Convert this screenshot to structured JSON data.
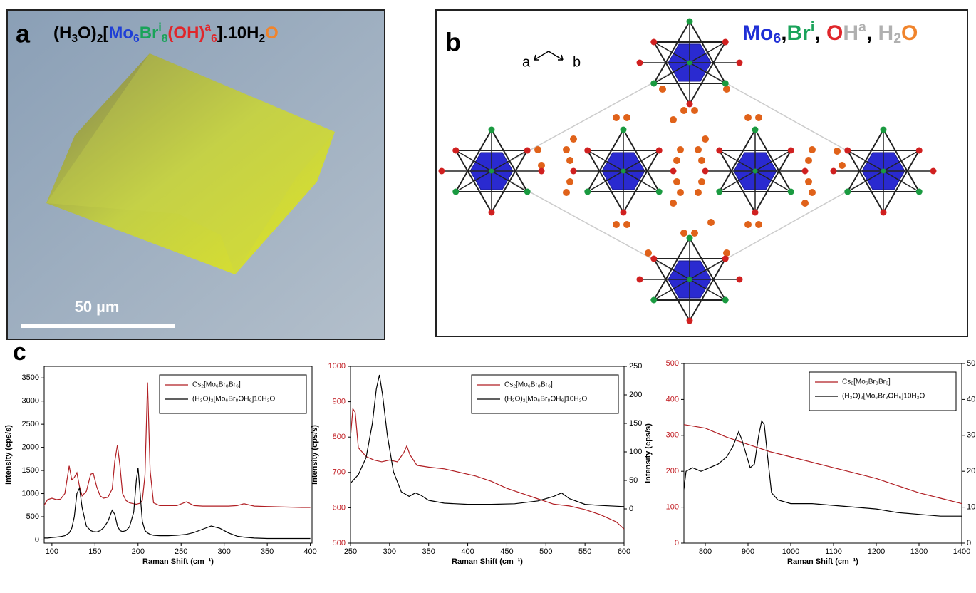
{
  "panel_a": {
    "label": "a",
    "formula": [
      {
        "text": "(H",
        "color": "#000000"
      },
      {
        "text": "3",
        "color": "#000000",
        "style": "sub"
      },
      {
        "text": "O)",
        "color": "#000000"
      },
      {
        "text": "2",
        "color": "#000000",
        "style": "sub"
      },
      {
        "text": "[",
        "color": "#000000"
      },
      {
        "text": "Mo",
        "color": "#1f3fd6"
      },
      {
        "text": "6",
        "color": "#1f3fd6",
        "style": "sub"
      },
      {
        "text": "Br",
        "color": "#1aa35a"
      },
      {
        "text": "i",
        "color": "#1aa35a",
        "style": "sup"
      },
      {
        "text": "8",
        "color": "#1aa35a",
        "style": "sub"
      },
      {
        "text": "(OH)",
        "color": "#e0262b"
      },
      {
        "text": "a",
        "color": "#e0262b",
        "style": "sup"
      },
      {
        "text": "6",
        "color": "#e0262b",
        "style": "sub"
      },
      {
        "text": "].10H",
        "color": "#000000"
      },
      {
        "text": "2",
        "color": "#000000",
        "style": "sub"
      },
      {
        "text": "O",
        "color": "#f0842c"
      }
    ],
    "scale_bar": "50 µm"
  },
  "panel_b": {
    "label": "b",
    "axis_a": "a",
    "axis_b": "b",
    "legend": [
      {
        "text": "Mo",
        "color": "#1f2fd6"
      },
      {
        "text": "6",
        "color": "#1f2fd6",
        "style": "sub"
      },
      {
        "text": ",",
        "color": "#000000"
      },
      {
        "text": "Br",
        "color": "#1aa35a"
      },
      {
        "text": "i",
        "color": "#1aa35a",
        "style": "sup"
      },
      {
        "text": ", ",
        "color": "#000000"
      },
      {
        "text": "O",
        "color": "#e0262b"
      },
      {
        "text": "H",
        "color": "#b0b0b0"
      },
      {
        "text": "a",
        "color": "#b0b0b0",
        "style": "sup"
      },
      {
        "text": ", ",
        "color": "#000000"
      },
      {
        "text": "H",
        "color": "#b0b0b0"
      },
      {
        "text": "2",
        "color": "#b0b0b0",
        "style": "sub"
      },
      {
        "text": "O",
        "color": "#f0842c"
      }
    ]
  },
  "panel_c": {
    "label": "c"
  },
  "chart_data": [
    {
      "type": "line",
      "xlabel": "Raman Shift (cm⁻¹)",
      "ylabel": "Intensity (cps/s)",
      "xlim": [
        91,
        402
      ],
      "ylim": [
        -70,
        3750
      ],
      "xticks": [
        100,
        150,
        200,
        250,
        300,
        350,
        400
      ],
      "yticks": [
        0,
        500,
        1000,
        1500,
        2000,
        2500,
        3000,
        3500
      ],
      "legend": "upper right",
      "series": [
        {
          "name": "Cs₂[Mo₆Br₈Br₆]",
          "color": "#b01e23",
          "x": [
            90,
            95,
            100,
            105,
            110,
            115,
            120,
            123,
            126,
            129,
            132,
            135,
            140,
            145,
            148,
            152,
            156,
            160,
            165,
            170,
            173,
            176,
            179,
            182,
            186,
            190,
            195,
            198,
            200,
            202,
            205,
            208,
            211,
            214,
            218,
            225,
            235,
            245,
            256,
            265,
            275,
            285,
            295,
            305,
            315,
            323,
            335,
            350,
            370,
            390,
            400
          ],
          "values": [
            720,
            870,
            900,
            870,
            880,
            1000,
            1600,
            1300,
            1350,
            1450,
            1150,
            950,
            1050,
            1420,
            1440,
            1150,
            950,
            900,
            920,
            1100,
            1700,
            2050,
            1600,
            1000,
            850,
            800,
            780,
            770,
            780,
            790,
            850,
            1400,
            3400,
            1500,
            800,
            740,
            740,
            740,
            820,
            740,
            730,
            730,
            730,
            730,
            740,
            780,
            730,
            720,
            710,
            700,
            700
          ]
        },
        {
          "name": "(H₃O)₂[Mo₆Br₈OH₆]10H₂O",
          "color": "#000000",
          "x": [
            90,
            95,
            100,
            105,
            110,
            115,
            120,
            123,
            126,
            129,
            132,
            135,
            140,
            145,
            148,
            152,
            156,
            160,
            165,
            170,
            173,
            176,
            179,
            182,
            186,
            190,
            195,
            198,
            200,
            202,
            205,
            208,
            211,
            214,
            218,
            225,
            235,
            245,
            256,
            265,
            275,
            285,
            295,
            305,
            315,
            323,
            335,
            350,
            370,
            390,
            400
          ],
          "values": [
            40,
            40,
            50,
            60,
            70,
            90,
            150,
            250,
            500,
            1000,
            1120,
            700,
            300,
            200,
            180,
            170,
            200,
            260,
            400,
            640,
            550,
            300,
            200,
            180,
            200,
            280,
            600,
            1300,
            1560,
            1100,
            400,
            200,
            150,
            120,
            100,
            90,
            90,
            100,
            120,
            160,
            230,
            300,
            250,
            150,
            80,
            60,
            40,
            30,
            30,
            30,
            30
          ]
        }
      ]
    },
    {
      "type": "line",
      "xlabel": "Raman Shift (cm⁻¹)",
      "ylabel": "Intensity (cps/s)",
      "xlim": [
        250,
        600
      ],
      "ylim": [
        500,
        1000
      ],
      "y2lim": [
        -60,
        250
      ],
      "xticks": [
        250,
        300,
        350,
        400,
        450,
        500,
        550,
        600
      ],
      "yticks": [
        500,
        600,
        700,
        800,
        900,
        1000
      ],
      "y2ticks": [
        0,
        50,
        100,
        150,
        200,
        250
      ],
      "legend": "upper right",
      "series": [
        {
          "name": "Cs₂[Mo₆Br₈Br₆]",
          "color": "#b01e23",
          "x": [
            250,
            253,
            256,
            260,
            270,
            280,
            290,
            300,
            310,
            318,
            322,
            326,
            335,
            350,
            370,
            390,
            410,
            430,
            450,
            470,
            490,
            510,
            530,
            550,
            570,
            590,
            600
          ],
          "values": [
            800,
            880,
            870,
            770,
            745,
            735,
            730,
            735,
            730,
            755,
            775,
            750,
            720,
            715,
            710,
            700,
            690,
            675,
            655,
            640,
            625,
            610,
            605,
            595,
            580,
            560,
            540
          ]
        },
        {
          "name": "(H₃O)₂[Mo₆Br₈OH₆]10H₂O",
          "color": "#000000",
          "axis": "y2",
          "x": [
            250,
            260,
            270,
            278,
            283,
            287,
            291,
            297,
            305,
            315,
            325,
            333,
            340,
            350,
            370,
            400,
            430,
            460,
            490,
            510,
            520,
            530,
            550,
            570,
            600
          ],
          "values": [
            45,
            60,
            90,
            150,
            210,
            235,
            200,
            130,
            65,
            30,
            22,
            28,
            24,
            15,
            10,
            8,
            8,
            9,
            14,
            22,
            28,
            18,
            8,
            6,
            4
          ]
        }
      ]
    },
    {
      "type": "line",
      "xlabel": "Raman Shift (cm⁻¹)",
      "ylabel": "Intensity (cps/s)",
      "xlim": [
        750,
        1400
      ],
      "ylim": [
        0,
        500
      ],
      "y2lim": [
        0,
        50
      ],
      "xticks": [
        800,
        900,
        1000,
        1100,
        1200,
        1300,
        1400
      ],
      "yticks": [
        0,
        100,
        200,
        300,
        400,
        500
      ],
      "y2ticks": [
        0,
        10,
        20,
        30,
        40,
        50
      ],
      "legend": "upper right",
      "series": [
        {
          "name": "Cs₂[Mo₆Br₈Br₆]",
          "color": "#b01e23",
          "x": [
            750,
            800,
            850,
            900,
            950,
            1000,
            1050,
            1100,
            1150,
            1200,
            1250,
            1300,
            1350,
            1400
          ],
          "values": [
            330,
            320,
            295,
            275,
            255,
            240,
            225,
            210,
            195,
            180,
            160,
            140,
            125,
            110
          ]
        },
        {
          "name": "(H₃O)₂[Mo₆Br₈OH₆]10H₂O",
          "color": "#000000",
          "axis": "y2",
          "x": [
            750,
            755,
            770,
            790,
            810,
            830,
            850,
            865,
            878,
            885,
            895,
            905,
            915,
            925,
            932,
            938,
            945,
            955,
            970,
            1000,
            1050,
            1100,
            1150,
            1200,
            1250,
            1300,
            1350,
            1400
          ],
          "values": [
            15,
            20,
            21,
            20,
            21,
            22,
            24,
            27,
            31,
            29,
            25,
            21,
            22,
            30,
            34,
            33,
            25,
            14,
            12,
            11,
            11,
            10.5,
            10,
            9.5,
            8.5,
            8,
            7.5,
            7.5
          ]
        }
      ]
    }
  ]
}
